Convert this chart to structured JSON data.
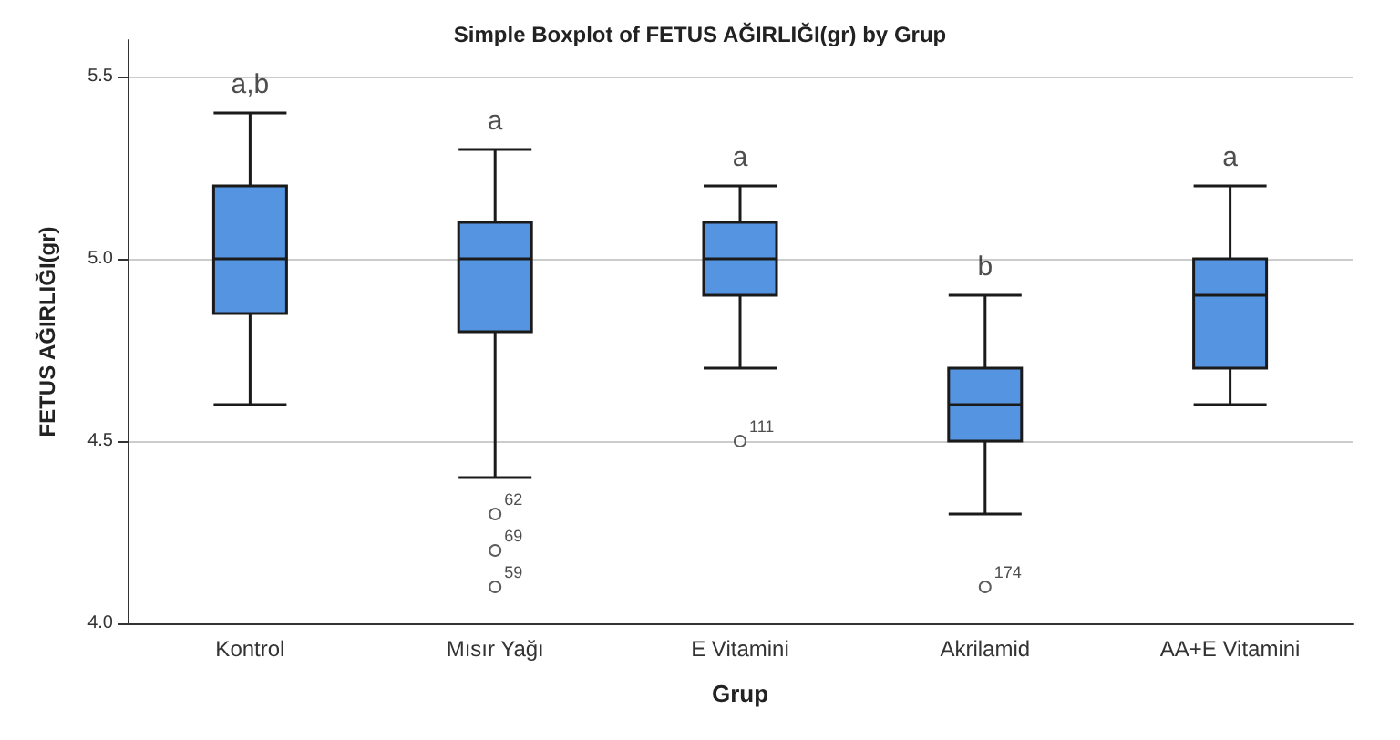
{
  "chart_data": {
    "type": "box",
    "title": "Simple Boxplot of FETUS AĞIRLIĞI(gr) by Grup",
    "xlabel": "Grup",
    "ylabel": "FETUS AĞIRLIĞI(gr)",
    "categories": [
      "Kontrol",
      "Mısır Yağı",
      "E Vitamini",
      "Akrilamid",
      "AA+E Vitamini"
    ],
    "boxes": [
      {
        "low": 4.6,
        "q1": 4.85,
        "median": 5.0,
        "q3": 5.2,
        "high": 5.4
      },
      {
        "low": 4.4,
        "q1": 4.8,
        "median": 5.0,
        "q3": 5.1,
        "high": 5.3,
        "outliers": [
          4.3,
          4.2,
          4.1
        ]
      },
      {
        "low": 4.7,
        "q1": 4.9,
        "median": 5.0,
        "q3": 5.1,
        "high": 5.2,
        "outliers": [
          4.5
        ]
      },
      {
        "low": 4.3,
        "q1": 4.5,
        "median": 4.6,
        "q3": 4.7,
        "high": 4.9,
        "outliers": [
          4.1
        ]
      },
      {
        "low": 4.6,
        "q1": 4.7,
        "median": 4.9,
        "q3": 5.0,
        "high": 5.2
      }
    ],
    "color": "#5594e0",
    "ylim": [
      4.0,
      5.6
    ],
    "yticks": [
      {
        "value": 4.0,
        "label": "4.0"
      },
      {
        "value": 4.5,
        "label": "4.5"
      },
      {
        "value": 5.0,
        "label": "5.0"
      },
      {
        "value": 5.5,
        "label": "5.5"
      }
    ],
    "grid": "y",
    "annotations": [
      "a,b",
      "a",
      "a",
      "b",
      "a",
      "62",
      "69",
      "59",
      "111",
      "174"
    ]
  }
}
